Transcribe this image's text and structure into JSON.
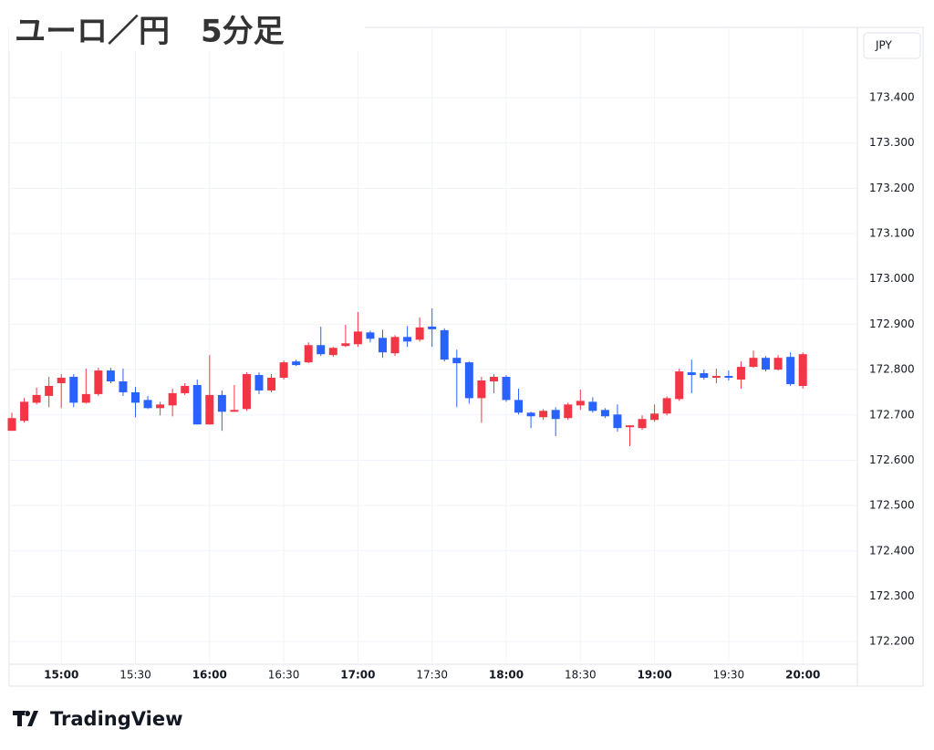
{
  "chart_data": {
    "type": "candlestick",
    "title": "ユーロ／円　5分足",
    "currency": "JPY",
    "brand": "TradingView",
    "x": [
      "14:40",
      "14:45",
      "14:50",
      "14:55",
      "15:00",
      "15:05",
      "15:10",
      "15:15",
      "15:20",
      "15:25",
      "15:30",
      "15:35",
      "15:40",
      "15:45",
      "15:50",
      "15:55",
      "16:00",
      "16:05",
      "16:10",
      "16:15",
      "16:20",
      "16:25",
      "16:30",
      "16:35",
      "16:40",
      "16:45",
      "16:50",
      "16:55",
      "17:00",
      "17:05",
      "17:10",
      "17:15",
      "17:20",
      "17:25",
      "17:30",
      "17:35",
      "17:40",
      "17:45",
      "17:50",
      "17:55",
      "18:00",
      "18:05",
      "18:10",
      "18:15",
      "18:20",
      "18:25",
      "18:30",
      "18:35",
      "18:40",
      "18:45",
      "18:50",
      "18:55",
      "19:00",
      "19:05",
      "19:10",
      "19:15",
      "19:20",
      "19:25",
      "19:30",
      "19:35",
      "19:40",
      "19:45",
      "19:50",
      "19:55",
      "20:00"
    ],
    "open": [
      172.665,
      172.687,
      172.727,
      172.742,
      172.77,
      172.784,
      172.727,
      172.746,
      172.798,
      172.774,
      172.75,
      172.733,
      172.715,
      172.721,
      172.748,
      172.766,
      172.679,
      172.744,
      172.707,
      172.713,
      172.788,
      172.754,
      172.782,
      172.818,
      172.816,
      172.854,
      172.832,
      172.852,
      172.856,
      172.882,
      172.87,
      172.836,
      172.872,
      172.866,
      172.895,
      172.887,
      172.826,
      172.816,
      172.737,
      172.774,
      172.784,
      172.733,
      172.705,
      172.695,
      172.711,
      172.693,
      172.721,
      172.729,
      172.711,
      172.701,
      172.673,
      172.671,
      172.689,
      172.703,
      172.735,
      172.794,
      172.792,
      172.782,
      172.786,
      172.778,
      172.806,
      172.826,
      172.8,
      172.828,
      172.764
    ],
    "high": [
      172.705,
      172.737,
      172.76,
      172.784,
      172.79,
      172.79,
      172.802,
      172.804,
      172.804,
      172.802,
      172.762,
      172.742,
      172.729,
      172.758,
      172.77,
      172.778,
      172.832,
      172.754,
      172.766,
      172.794,
      172.794,
      172.79,
      172.82,
      172.822,
      172.86,
      172.895,
      172.85,
      172.899,
      172.927,
      172.886,
      172.888,
      172.876,
      172.896,
      172.915,
      172.935,
      172.891,
      172.844,
      172.818,
      172.784,
      172.79,
      172.788,
      172.758,
      172.707,
      172.713,
      172.717,
      172.727,
      172.756,
      172.739,
      172.715,
      172.723,
      172.677,
      172.699,
      172.723,
      172.741,
      172.802,
      172.822,
      172.8,
      172.802,
      172.798,
      172.818,
      172.842,
      172.83,
      172.832,
      172.838,
      172.838
    ],
    "low": [
      172.665,
      172.683,
      172.723,
      172.717,
      172.715,
      172.717,
      172.725,
      172.742,
      172.77,
      172.742,
      172.695,
      172.713,
      172.699,
      172.697,
      172.744,
      172.679,
      172.679,
      172.665,
      172.707,
      172.709,
      172.746,
      172.75,
      172.778,
      172.808,
      172.814,
      172.83,
      172.828,
      172.85,
      172.85,
      172.86,
      172.826,
      172.83,
      172.85,
      172.862,
      172.85,
      172.818,
      172.717,
      172.725,
      172.683,
      172.748,
      172.729,
      172.701,
      172.671,
      172.689,
      172.653,
      172.689,
      172.711,
      172.705,
      172.693,
      172.663,
      172.631,
      172.667,
      172.685,
      172.699,
      172.731,
      172.748,
      172.778,
      172.77,
      172.776,
      172.758,
      172.804,
      172.796,
      172.798,
      172.764,
      172.758
    ],
    "close": [
      172.693,
      172.729,
      172.744,
      172.764,
      172.782,
      172.727,
      172.746,
      172.798,
      172.774,
      172.75,
      172.727,
      172.715,
      172.723,
      172.748,
      172.764,
      172.679,
      172.744,
      172.707,
      172.711,
      172.79,
      172.754,
      172.782,
      172.816,
      172.81,
      172.854,
      172.834,
      172.848,
      172.858,
      172.884,
      172.868,
      172.838,
      172.872,
      172.862,
      172.893,
      172.889,
      172.822,
      172.814,
      172.737,
      172.776,
      172.784,
      172.733,
      172.705,
      172.697,
      172.709,
      172.691,
      172.723,
      172.731,
      172.709,
      172.697,
      172.671,
      172.677,
      172.691,
      172.703,
      172.737,
      172.796,
      172.788,
      172.782,
      172.786,
      172.782,
      172.806,
      172.826,
      172.8,
      172.826,
      172.768,
      172.834
    ],
    "up_color": "#f23645",
    "down_color": "#2962ff",
    "xticks": [
      "15:00",
      "15:30",
      "16:00",
      "16:30",
      "17:00",
      "17:30",
      "18:00",
      "18:30",
      "19:00",
      "19:30",
      "20:00"
    ],
    "ylim": [
      172.15,
      173.555
    ],
    "yticks": [
      {
        "value": 172.2,
        "label": "172.200"
      },
      {
        "value": 172.3,
        "label": "172.300"
      },
      {
        "value": 172.4,
        "label": "172.400"
      },
      {
        "value": 172.5,
        "label": "172.500"
      },
      {
        "value": 172.6,
        "label": "172.600"
      },
      {
        "value": 172.7,
        "label": "172.700"
      },
      {
        "value": 172.8,
        "label": "172.800"
      },
      {
        "value": 172.9,
        "label": "172.900"
      },
      {
        "value": 173.0,
        "label": "173.000"
      },
      {
        "value": 173.1,
        "label": "173.100"
      },
      {
        "value": 173.2,
        "label": "173.200"
      },
      {
        "value": 173.3,
        "label": "173.300"
      },
      {
        "value": 173.4,
        "label": "173.400"
      }
    ],
    "grid": true
  }
}
